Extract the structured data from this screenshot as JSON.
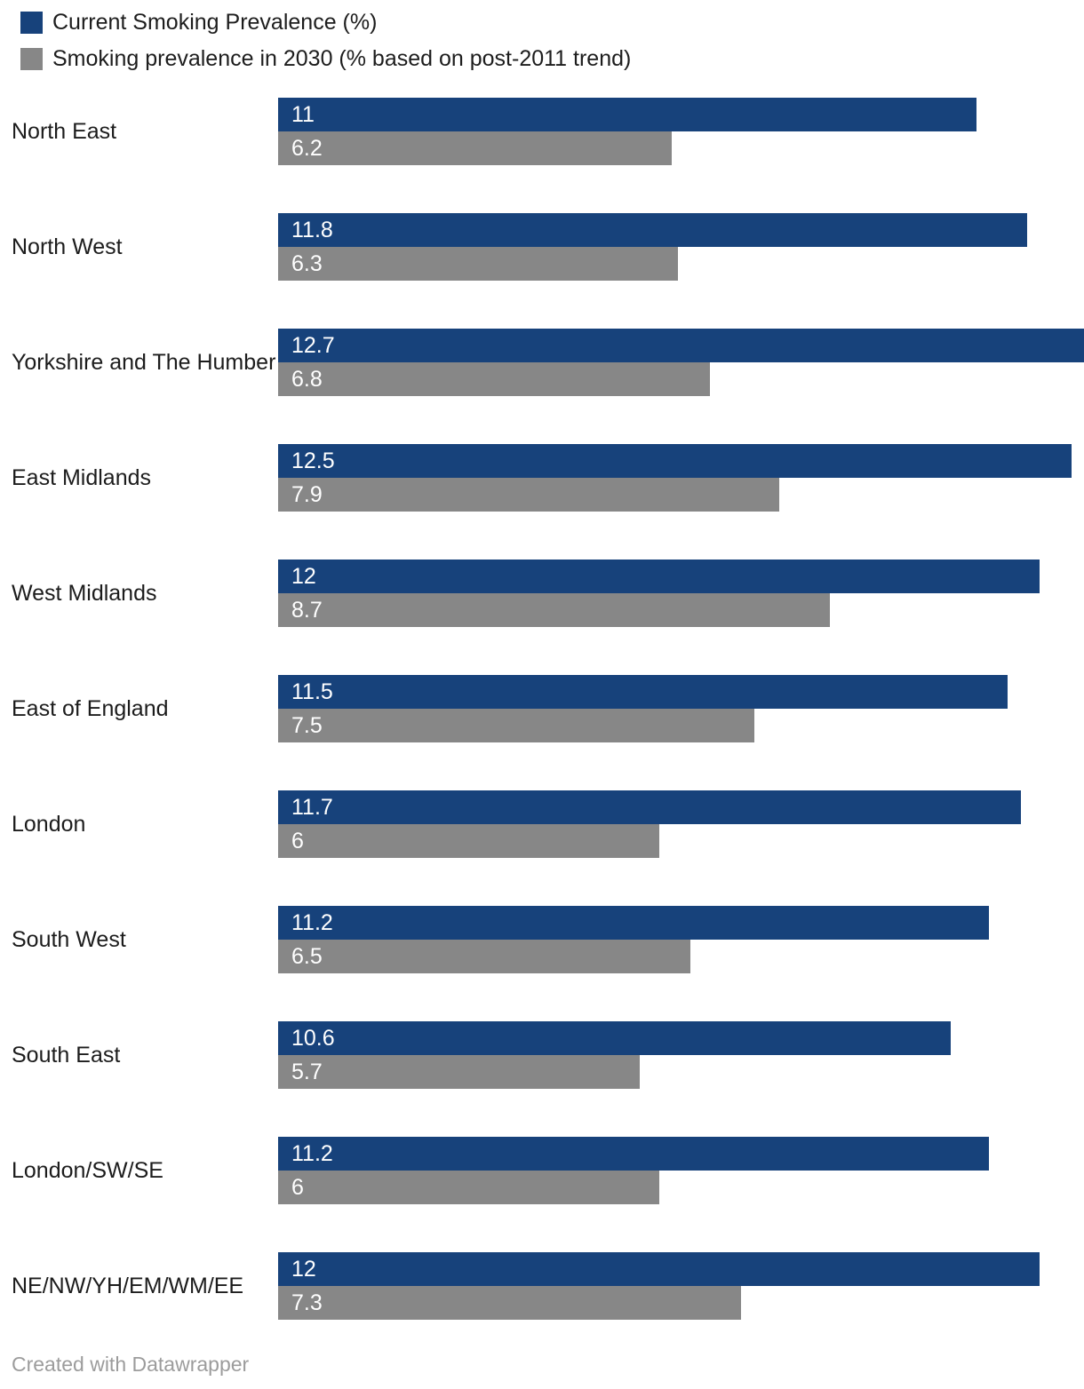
{
  "legend": [
    {
      "label": "Current Smoking Prevalence (%)",
      "color": "#17427B"
    },
    {
      "label": "Smoking prevalence in 2030 (% based on post-2011 trend)",
      "color": "#878787"
    }
  ],
  "chart_data": {
    "type": "bar",
    "orientation": "horizontal",
    "title": "",
    "xlabel": "",
    "ylabel": "",
    "xmax": 12.7,
    "xlim": [
      0,
      12.7
    ],
    "grid": false,
    "legend_position": "top-left",
    "categories": [
      "North East",
      "North West",
      "Yorkshire and The Humber",
      "East Midlands",
      "West Midlands",
      "East of England",
      "London",
      "South West",
      "South East",
      "London/SW/SE",
      "NE/NW/YH/EM/WM/EE"
    ],
    "series": [
      {
        "name": "Current Smoking Prevalence (%)",
        "color": "#17427B",
        "values": [
          11,
          11.8,
          12.7,
          12.5,
          12,
          11.5,
          11.7,
          11.2,
          10.6,
          11.2,
          12
        ]
      },
      {
        "name": "Smoking prevalence in 2030 (% based on post-2011 trend)",
        "color": "#878787",
        "values": [
          6.2,
          6.3,
          6.8,
          7.9,
          8.7,
          7.5,
          6,
          6.5,
          5.7,
          6,
          7.3
        ]
      }
    ]
  },
  "footer": {
    "credit": "Created with Datawrapper"
  }
}
